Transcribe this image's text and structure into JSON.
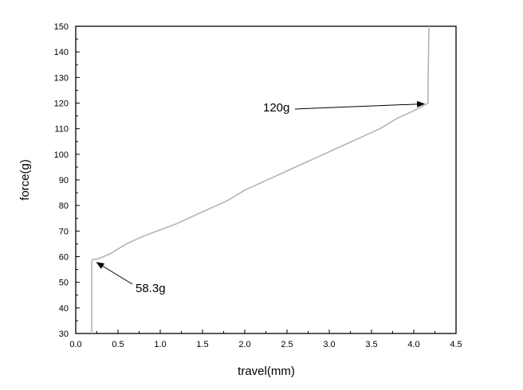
{
  "chart_data": {
    "type": "line",
    "xlabel": "travel(mm)",
    "ylabel": "force(g)",
    "xlim": [
      0.0,
      4.5
    ],
    "ylim": [
      30,
      150
    ],
    "xticks": [
      "0.0",
      "0.5",
      "1.0",
      "1.5",
      "2.0",
      "2.5",
      "3.0",
      "3.5",
      "4.0",
      "4.5"
    ],
    "yticks": [
      "30",
      "40",
      "50",
      "60",
      "70",
      "80",
      "90",
      "100",
      "110",
      "120",
      "130",
      "140",
      "150"
    ],
    "grid": false,
    "legend": "none",
    "line_color": "#b4b4b4",
    "series": [
      {
        "x": [
          0.19,
          0.19,
          0.2,
          0.25,
          0.4,
          0.6,
          0.8,
          1.0,
          1.2,
          1.4,
          1.6,
          1.8,
          2.0,
          2.2,
          2.4,
          2.6,
          2.8,
          3.0,
          3.2,
          3.4,
          3.6,
          3.8,
          4.0,
          4.17,
          4.17,
          4.18
        ],
        "y": [
          30,
          58.3,
          59,
          59,
          61,
          65,
          68,
          70.5,
          73,
          76,
          79,
          82,
          86,
          89,
          92,
          95,
          98,
          101,
          104,
          107,
          110,
          114,
          117,
          120,
          130,
          150
        ]
      }
    ],
    "annotations": [
      {
        "text": "120g",
        "x": 4.17,
        "y": 120
      },
      {
        "text": "58.3g",
        "x": 0.22,
        "y": 59
      }
    ]
  }
}
